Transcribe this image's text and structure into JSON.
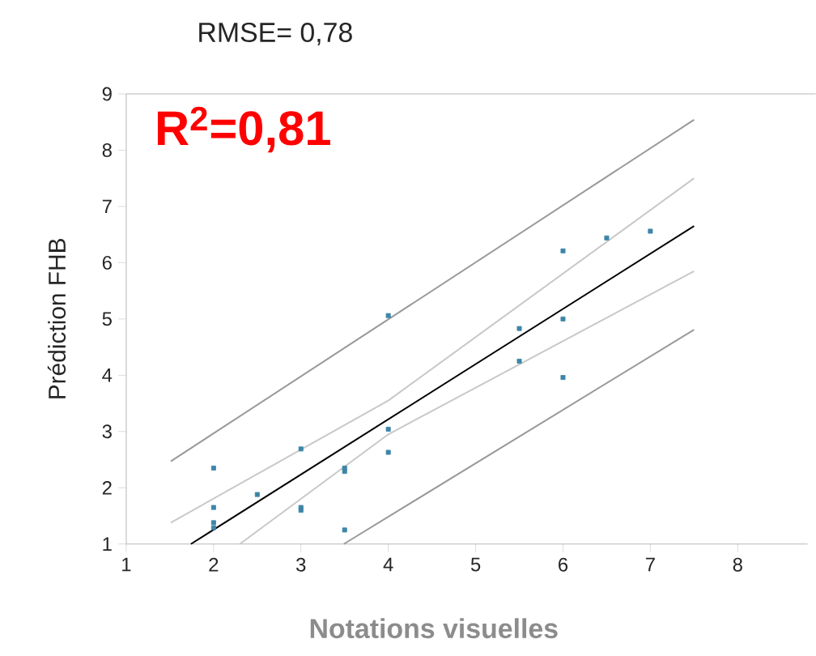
{
  "chart_data": {
    "type": "scatter",
    "title": "RMSE= 0,78",
    "xlabel": "Notations visuelles",
    "ylabel": "Prédiction FHB",
    "annotations": [
      "**R$^{2}$=0,81**"
    ],
    "xlim": [
      1,
      8.8
    ],
    "ylim": [
      1,
      9
    ],
    "xticks": [
      1,
      2,
      3,
      4,
      5,
      6,
      7,
      8
    ],
    "yticks": [
      1,
      2,
      3,
      4,
      5,
      6,
      7,
      8,
      9
    ],
    "marker": "square",
    "series": [
      {
        "color": "#3d85a8",
        "x": [
          2,
          2,
          2,
          2,
          2.5,
          3,
          3,
          3,
          3.5,
          3.5,
          3.5,
          4,
          4,
          4,
          5.5,
          5.5,
          6,
          6,
          6,
          6.5,
          7
        ],
        "values": [
          2.35,
          1.65,
          1.38,
          1.29,
          1.88,
          2.69,
          1.65,
          1.6,
          2.35,
          2.29,
          1.25,
          5.06,
          3.04,
          2.63,
          4.83,
          4.25,
          6.21,
          5.0,
          3.96,
          6.44,
          6.56
        ]
      },
      {
        "type": "line",
        "marker": "none",
        "color": "#000000",
        "x": [
          1.74,
          7.5
        ],
        "values": [
          1,
          6.65
        ]
      },
      {
        "type": "line",
        "marker": "none",
        "color": "#c8c8c8",
        "x": [
          1.51,
          4,
          7.5
        ],
        "values": [
          1.38,
          3.55,
          7.5
        ]
      },
      {
        "type": "line",
        "marker": "none",
        "color": "#c8c8c8",
        "x": [
          2.3,
          4,
          7.5
        ],
        "values": [
          1,
          2.95,
          5.85
        ]
      },
      {
        "type": "line",
        "marker": "none",
        "color": "#999999",
        "x": [
          1.51,
          7.5
        ],
        "values": [
          2.47,
          8.54
        ]
      },
      {
        "type": "line",
        "marker": "none",
        "color": "#999999",
        "x": [
          3.49,
          7.5
        ],
        "values": [
          1,
          4.81
        ]
      }
    ]
  }
}
